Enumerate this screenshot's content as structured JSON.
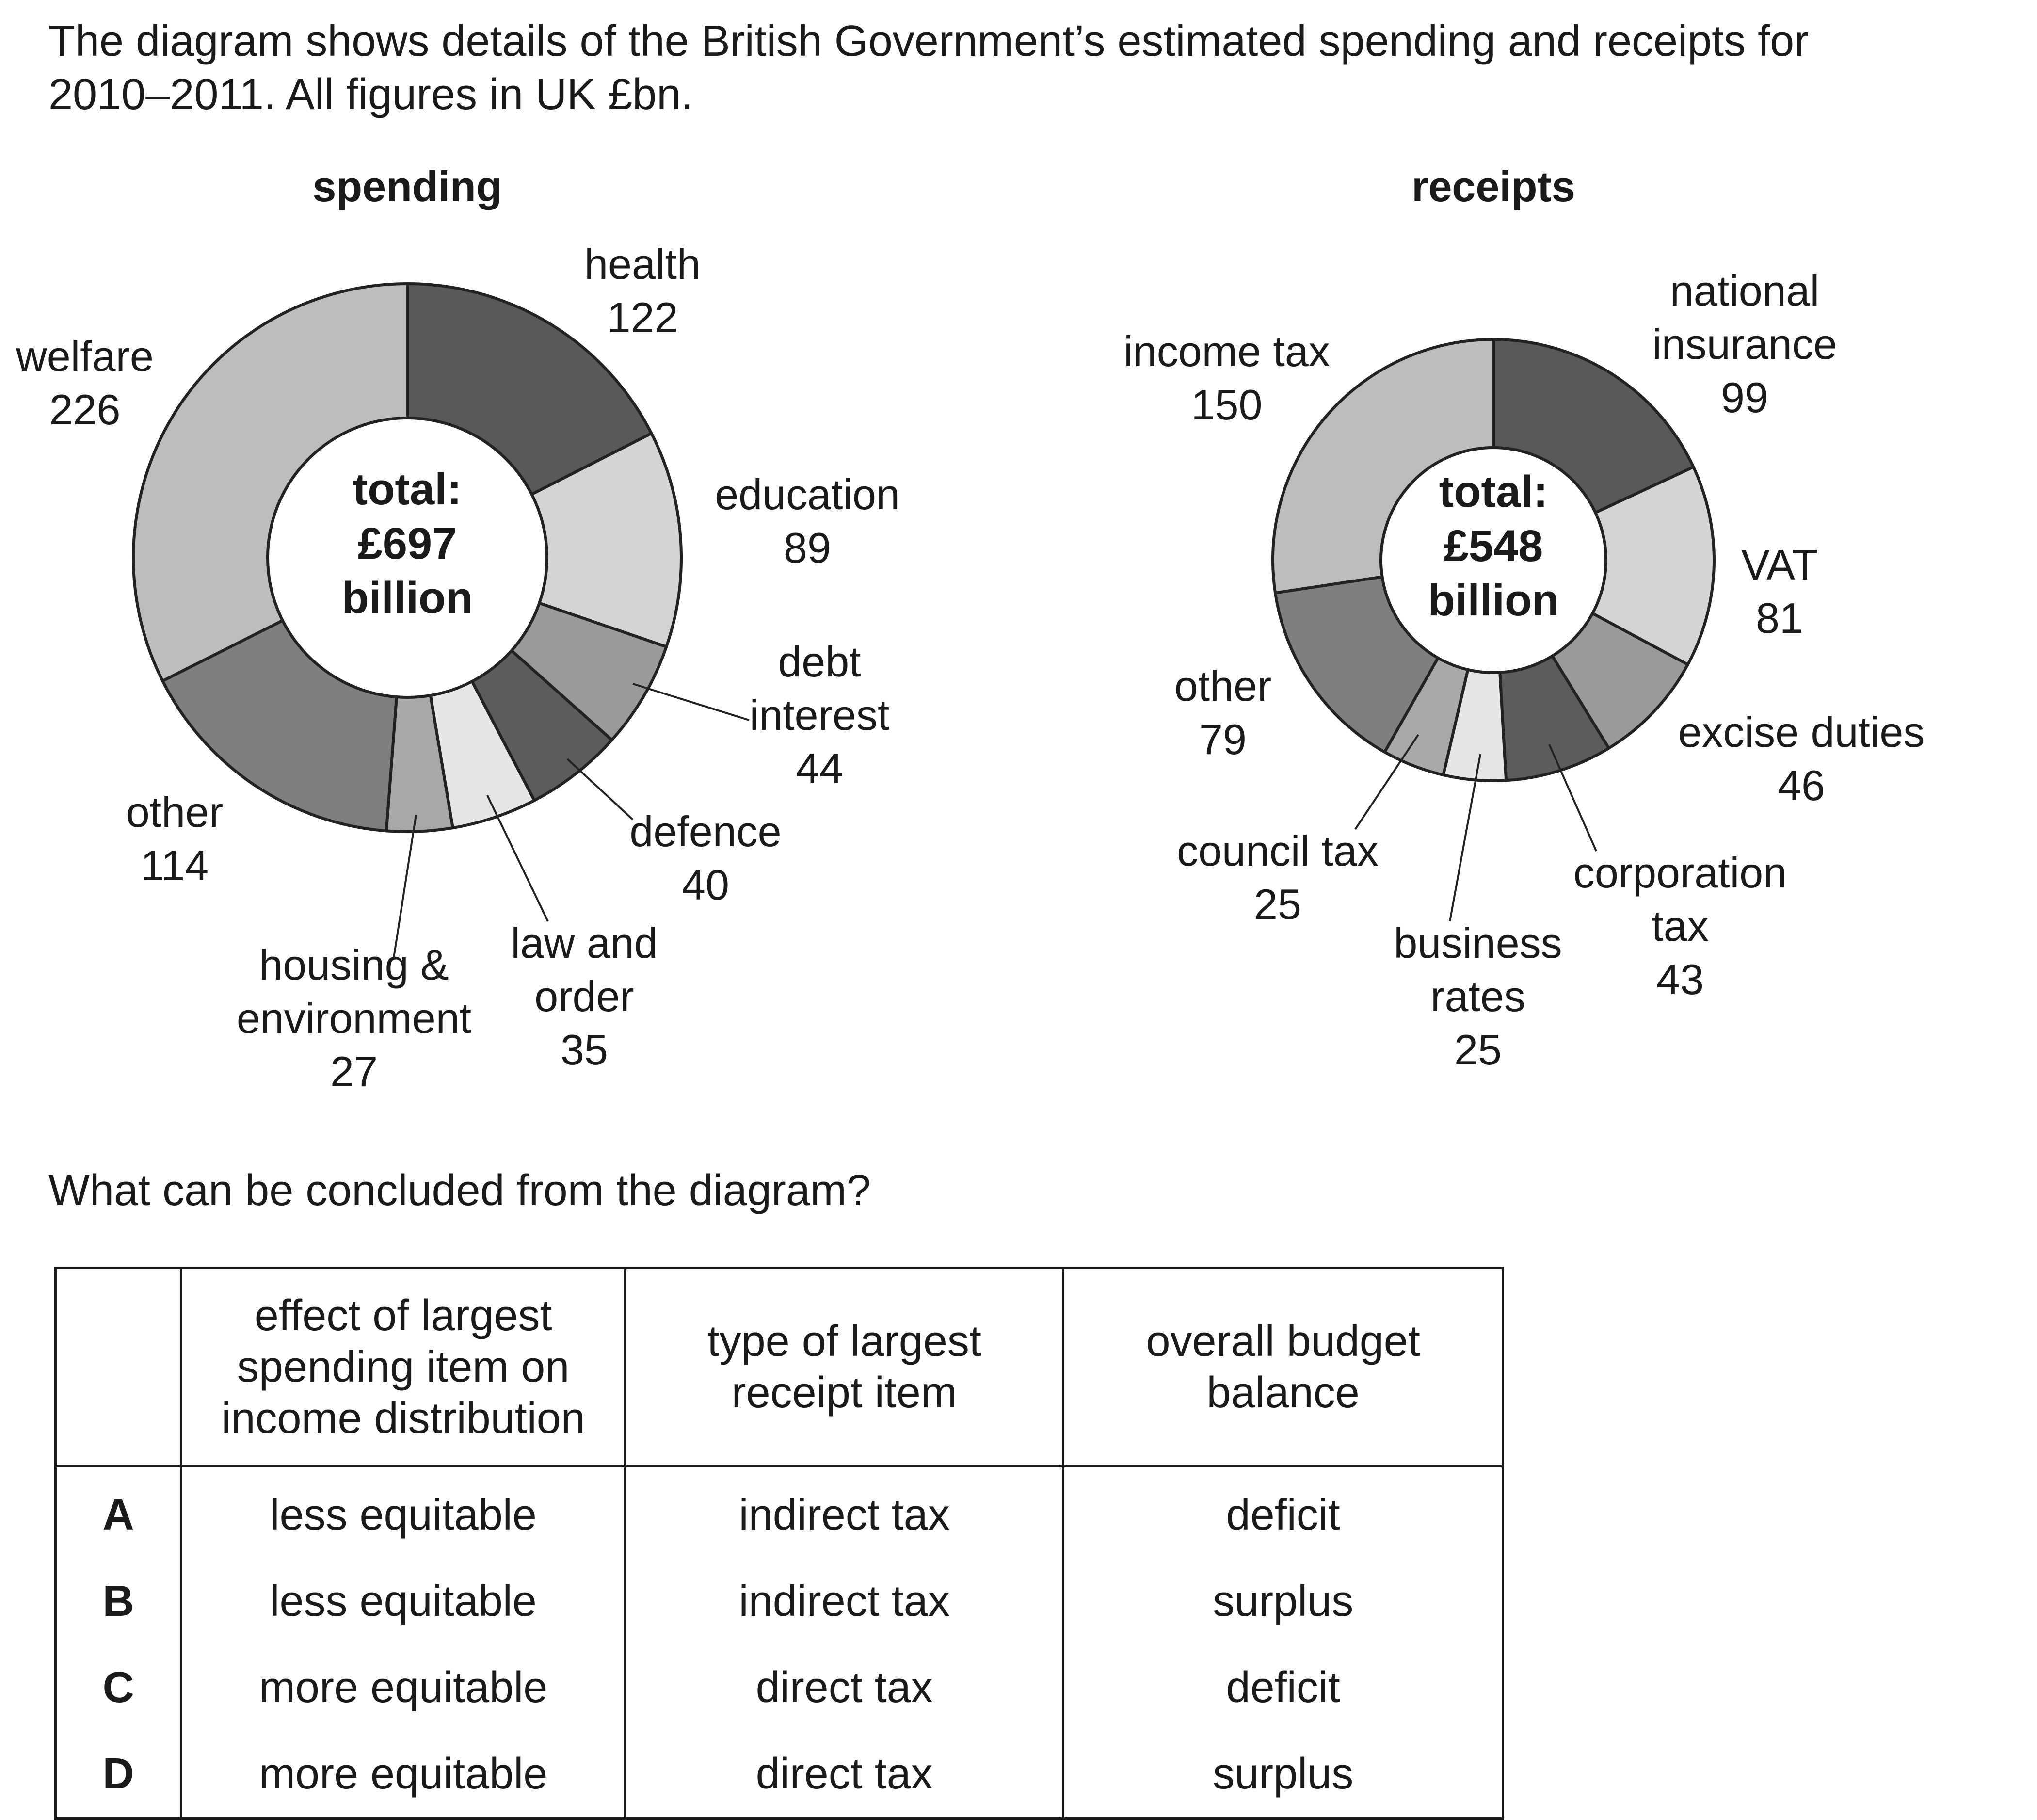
{
  "intro": {
    "line1": "The diagram shows details of the British Government’s estimated spending and receipts for",
    "line2": "2010–2011. All figures in UK £bn."
  },
  "chart_data": [
    {
      "type": "donut",
      "title": "spending",
      "center": [
        "total:",
        "£697",
        "billion"
      ],
      "categories": [
        "health",
        "education",
        "debt interest",
        "defence",
        "law and order",
        "housing & environment",
        "other",
        "welfare"
      ],
      "values": [
        122,
        89,
        44,
        40,
        35,
        27,
        114,
        226
      ],
      "labels": [
        [
          "health",
          "122"
        ],
        [
          "education",
          "89"
        ],
        [
          "debt",
          "interest",
          "44"
        ],
        [
          "defence",
          "40"
        ],
        [
          "law and",
          "order",
          "35"
        ],
        [
          "housing &",
          "environment",
          "27"
        ],
        [
          "other",
          "114"
        ],
        [
          "welfare",
          "226"
        ]
      ],
      "colors": [
        "#595959",
        "#d4d4d4",
        "#9a9a9a",
        "#5c5c5c",
        "#e6e6e6",
        "#a9a9a9",
        "#7f7f7f",
        "#bdbdbd"
      ],
      "total": 697
    },
    {
      "type": "donut",
      "title": "receipts",
      "center": [
        "total:",
        "£548",
        "billion"
      ],
      "categories": [
        "national insurance",
        "VAT",
        "excise duties",
        "corporation tax",
        "business rates",
        "council tax",
        "other",
        "income tax"
      ],
      "values": [
        99,
        81,
        46,
        43,
        25,
        25,
        79,
        150
      ],
      "labels": [
        [
          "national",
          "insurance",
          "99"
        ],
        [
          "VAT",
          "81"
        ],
        [
          "excise duties",
          "46"
        ],
        [
          "corporation",
          "tax",
          "43"
        ],
        [
          "business",
          "rates",
          "25"
        ],
        [
          "council tax",
          "25"
        ],
        [
          "other",
          "79"
        ],
        [
          "income tax",
          "150"
        ]
      ],
      "colors": [
        "#595959",
        "#d4d4d4",
        "#9a9a9a",
        "#5c5c5c",
        "#e6e6e6",
        "#a9a9a9",
        "#7f7f7f",
        "#bdbdbd"
      ],
      "total": 548
    }
  ],
  "question": "What can be concluded from the diagram?",
  "table": {
    "headers": [
      "",
      "effect of largest spending item on income distribution",
      "type of largest receipt item",
      "overall budget balance"
    ],
    "rows": [
      [
        "A",
        "less equitable",
        "indirect tax",
        "deficit"
      ],
      [
        "B",
        "less equitable",
        "indirect tax",
        "surplus"
      ],
      [
        "C",
        "more equitable",
        "direct tax",
        "deficit"
      ],
      [
        "D",
        "more equitable",
        "direct tax",
        "surplus"
      ]
    ]
  }
}
